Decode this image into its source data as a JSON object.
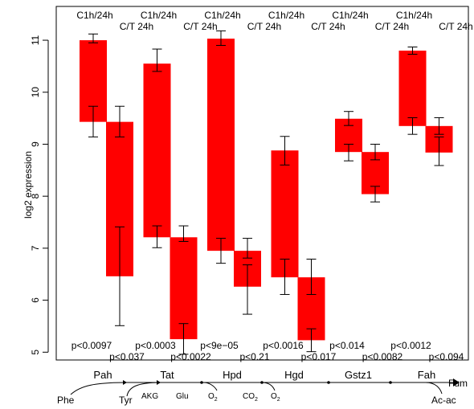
{
  "chart_data": {
    "type": "bar",
    "chart_style": "floating paired bars with error bars",
    "ylabel": "log2 expression",
    "ylim": [
      4.85,
      11.65
    ],
    "yticks": [
      5,
      6,
      7,
      8,
      9,
      10,
      11
    ],
    "grid": false,
    "legend": "none",
    "bar_color": "#ff0000",
    "pair_labels": {
      "top": "C1h/24h",
      "bottom": "C/T 24h"
    },
    "genes": [
      {
        "name": "Pah",
        "bars": [
          {
            "label": "C1h/24h",
            "low": 9.43,
            "high": 11.0,
            "err_high": [
              11.12,
              10.95
            ],
            "err_low": [
              9.73,
              9.14
            ]
          },
          {
            "label": "C/T 24h",
            "low": 6.46,
            "high": 9.43,
            "err_high": [
              9.73,
              9.14
            ],
            "err_low": [
              7.41,
              5.51
            ]
          }
        ],
        "pvalues": [
          "p<0.0097",
          "p<0.037"
        ]
      },
      {
        "name": "Tat",
        "bars": [
          {
            "label": "C1h/24h",
            "low": 7.21,
            "high": 10.55,
            "err_high": [
              10.83,
              10.4
            ],
            "err_low": [
              7.43,
              7.01
            ]
          },
          {
            "label": "C/T 24h",
            "low": 5.25,
            "high": 7.21,
            "err_high": [
              7.43,
              7.13
            ],
            "err_low": [
              5.55,
              4.96
            ]
          }
        ],
        "pvalues": [
          "p<0.0003",
          "p<0.0022"
        ]
      },
      {
        "name": "Hpd",
        "bars": [
          {
            "label": "C1h/24h",
            "low": 6.95,
            "high": 11.03,
            "err_high": [
              11.18,
              10.9
            ],
            "err_low": [
              7.19,
              6.71
            ]
          },
          {
            "label": "C/T 24h",
            "low": 6.26,
            "high": 6.95,
            "err_high": [
              7.19,
              6.81
            ],
            "err_low": [
              6.68,
              5.73
            ]
          }
        ],
        "pvalues": [
          "p<9e−05",
          "p<0.21"
        ]
      },
      {
        "name": "Hgd",
        "bars": [
          {
            "label": "C1h/24h",
            "low": 6.44,
            "high": 8.88,
            "err_high": [
              9.15,
              8.6
            ],
            "err_low": [
              6.79,
              6.11
            ]
          },
          {
            "label": "C/T 24h",
            "low": 5.23,
            "high": 6.44,
            "err_high": [
              6.79,
              6.11
            ],
            "err_low": [
              5.45,
              5.01
            ]
          }
        ],
        "pvalues": [
          "p<0.0016",
          "p<0.017"
        ]
      },
      {
        "name": "Gstz1",
        "bars": [
          {
            "label": "C1h/24h",
            "low": 8.85,
            "high": 9.49,
            "err_high": [
              9.63,
              9.36
            ],
            "err_low": [
              9.0,
              8.68
            ]
          },
          {
            "label": "C/T 24h",
            "low": 8.04,
            "high": 8.85,
            "err_high": [
              9.0,
              8.7
            ],
            "err_low": [
              8.19,
              7.89
            ]
          }
        ],
        "pvalues": [
          "p<0.014",
          "p<0.0082"
        ]
      },
      {
        "name": "Fah",
        "bars": [
          {
            "label": "C1h/24h",
            "low": 9.35,
            "high": 10.8,
            "err_high": [
              10.87,
              10.73
            ],
            "err_low": [
              9.51,
              9.19
            ]
          },
          {
            "label": "C/T 24h",
            "low": 8.84,
            "high": 9.35,
            "err_high": [
              9.51,
              9.19
            ],
            "err_low": [
              9.14,
              8.59
            ]
          }
        ],
        "pvalues": [
          "p<0.0012",
          "p<0.094"
        ]
      }
    ]
  },
  "pathway": {
    "metabolites": [
      "Phe",
      "Tyr",
      "Fum",
      "Ac-ac"
    ],
    "cofactors": [
      "AKG",
      "Glu",
      "O2",
      "CO2",
      "O2"
    ],
    "cofactor_labels": [
      {
        "base": "O",
        "sub": "2"
      },
      {
        "base": "CO",
        "sub": "2"
      },
      {
        "base": "O",
        "sub": "2"
      }
    ]
  }
}
